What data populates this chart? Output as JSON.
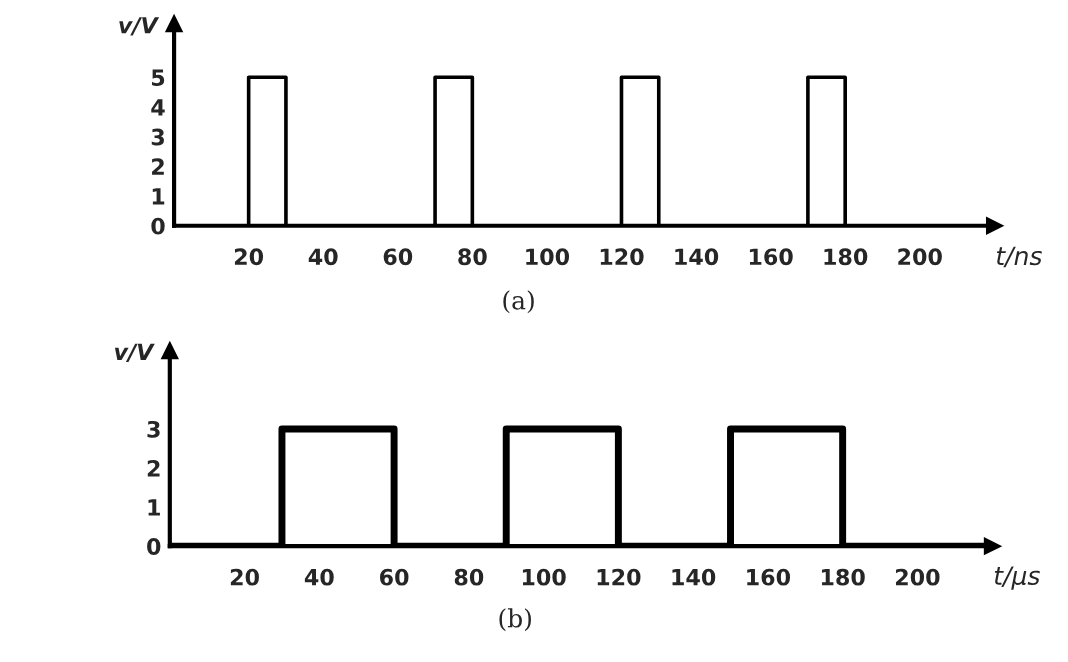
{
  "chart_data": [
    {
      "type": "step",
      "xlabel": "t/ns",
      "ylabel": "v/V",
      "annotations": [
        "(a)"
      ],
      "series": [
        {
          "color": "#000000",
          "x": [
            0,
            20,
            30,
            70,
            80,
            120,
            130,
            170,
            180,
            220
          ],
          "values": [
            0,
            5,
            0,
            5,
            0,
            5,
            0,
            5,
            0,
            0
          ]
        }
      ],
      "xlim": [
        0,
        220
      ],
      "xticks": [
        20,
        40,
        60,
        80,
        100,
        120,
        140,
        160,
        180,
        200
      ],
      "ylim": [
        0,
        6.8
      ],
      "yticks": [
        0,
        1,
        2,
        3,
        4,
        5
      ],
      "grid": false,
      "legend": false
    },
    {
      "type": "step",
      "xlabel": "t/μs",
      "ylabel": "v/V",
      "annotations": [
        "(b)"
      ],
      "series": [
        {
          "color": "#000000",
          "x": [
            0,
            30,
            60,
            90,
            120,
            150,
            180,
            220
          ],
          "values": [
            0,
            3,
            0,
            3,
            0,
            3,
            0,
            0
          ]
        }
      ],
      "xlim": [
        0,
        220
      ],
      "xticks": [
        20,
        40,
        60,
        80,
        100,
        120,
        140,
        160,
        180,
        200
      ],
      "ylim": [
        0,
        5
      ],
      "yticks": [
        0,
        1,
        2,
        3
      ],
      "grid": false,
      "legend": false
    }
  ]
}
